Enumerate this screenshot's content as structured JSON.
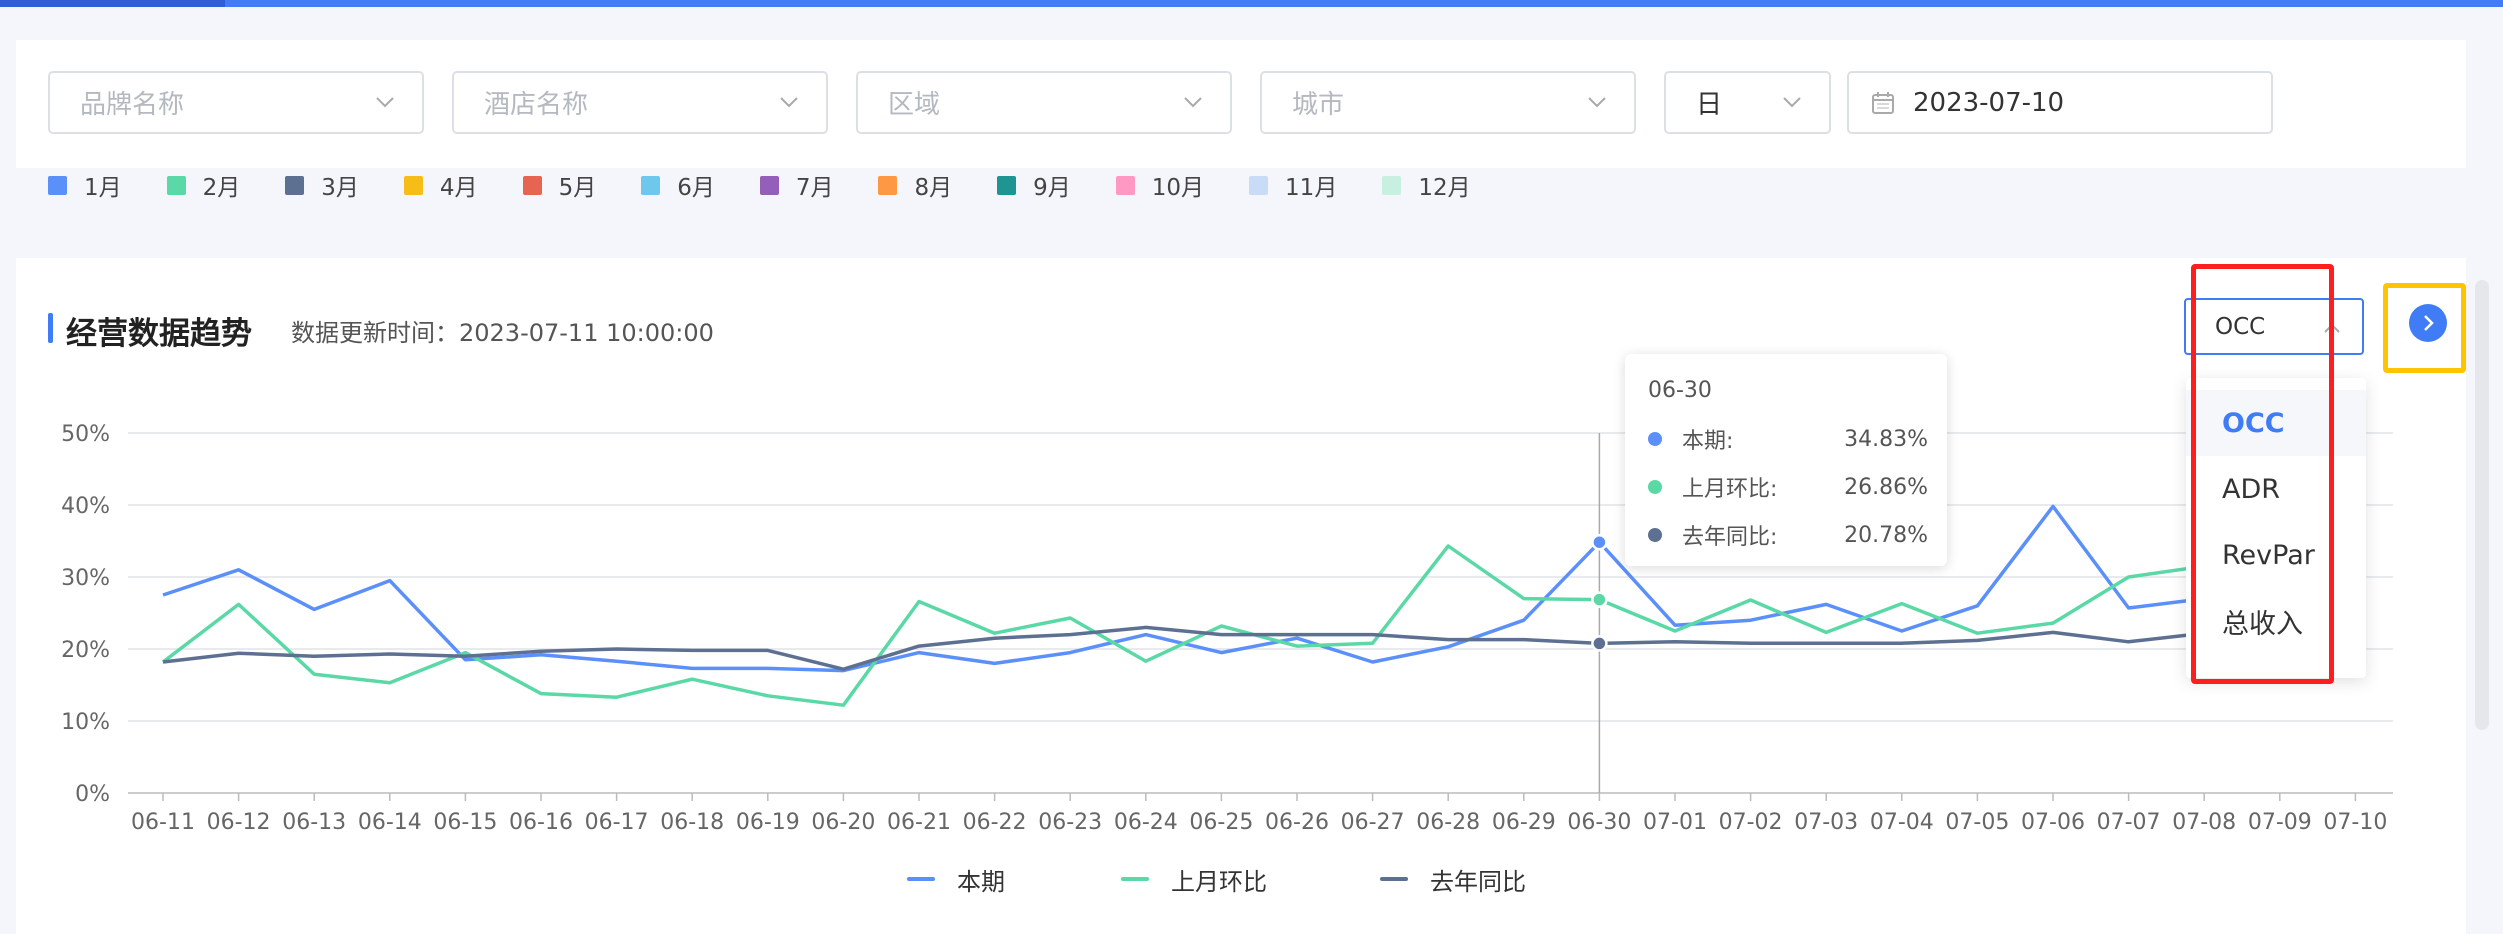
{
  "filters": {
    "brand_placeholder": "品牌名称",
    "hotel_placeholder": "酒店名称",
    "region_placeholder": "区域",
    "city_placeholder": "城市",
    "granularity": "日",
    "date": "2023-07-10"
  },
  "month_legend": [
    {
      "label": "1月",
      "color": "#5b8ff9"
    },
    {
      "label": "2月",
      "color": "#5ad8a6"
    },
    {
      "label": "3月",
      "color": "#5d7092"
    },
    {
      "label": "4月",
      "color": "#f6bd16"
    },
    {
      "label": "5月",
      "color": "#e86452"
    },
    {
      "label": "6月",
      "color": "#6dc8ec"
    },
    {
      "label": "7月",
      "color": "#945fb9"
    },
    {
      "label": "8月",
      "color": "#ff9845"
    },
    {
      "label": "9月",
      "color": "#1e9493"
    },
    {
      "label": "10月",
      "color": "#ff99c3"
    },
    {
      "label": "11月",
      "color": "#c9dcf7"
    },
    {
      "label": "12月",
      "color": "#c8f0e0"
    }
  ],
  "section": {
    "title": "经营数据趋势",
    "update_time": "数据更新时间：2023-07-11 10:00:00"
  },
  "metric_select": {
    "value": "OCC",
    "options": [
      "OCC",
      "ADR",
      "RevPar",
      "总收入"
    ]
  },
  "tooltip": {
    "date": "06-30",
    "rows": [
      {
        "label": "本期:",
        "value": "34.83%",
        "color": "#5b8ff9"
      },
      {
        "label": "上月环比:",
        "value": "26.86%",
        "color": "#5ad8a6"
      },
      {
        "label": "去年同比:",
        "value": "20.78%",
        "color": "#5d7092"
      }
    ]
  },
  "chart_data": {
    "type": "line",
    "categories": [
      "06-11",
      "06-12",
      "06-13",
      "06-14",
      "06-15",
      "06-16",
      "06-17",
      "06-18",
      "06-19",
      "06-20",
      "06-21",
      "06-22",
      "06-23",
      "06-24",
      "06-25",
      "06-26",
      "06-27",
      "06-28",
      "06-29",
      "06-30",
      "07-01",
      "07-02",
      "07-03",
      "07-04",
      "07-05",
      "07-06",
      "07-07",
      "07-08",
      "07-09",
      "07-10"
    ],
    "yticks": [
      "0%",
      "10%",
      "20%",
      "30%",
      "40%",
      "50%"
    ],
    "ylim": [
      0,
      50
    ],
    "grid": true,
    "legend_position": "bottom-center",
    "series": [
      {
        "name": "本期",
        "color": "#5b8ff9",
        "values": [
          27.5,
          31,
          25.5,
          29.5,
          18.5,
          19.2,
          18.3,
          17.3,
          17.3,
          17,
          19.5,
          18,
          19.5,
          22,
          19.5,
          21.5,
          18.2,
          20.3,
          24,
          34.83,
          23.3,
          24,
          26.2,
          22.5,
          26,
          39.8,
          25.7,
          27,
          null,
          null
        ]
      },
      {
        "name": "上月环比",
        "color": "#5ad8a6",
        "values": [
          18.2,
          26.2,
          16.5,
          15.3,
          19.5,
          13.8,
          13.3,
          15.8,
          13.5,
          12.2,
          26.6,
          22.2,
          24.3,
          18.3,
          23.2,
          20.4,
          20.8,
          34.3,
          27,
          26.86,
          22.5,
          26.8,
          22.3,
          26.3,
          22.2,
          23.6,
          30,
          31.5,
          null,
          null
        ]
      },
      {
        "name": "去年同比",
        "color": "#5d7092",
        "values": [
          18.2,
          19.4,
          19,
          19.3,
          19,
          19.7,
          20,
          19.8,
          19.8,
          17.2,
          20.4,
          21.5,
          22,
          23,
          22,
          22,
          22,
          21.3,
          21.3,
          20.78,
          21,
          20.8,
          20.8,
          20.8,
          21.2,
          22.3,
          21,
          22.2,
          null,
          null
        ]
      }
    ]
  }
}
